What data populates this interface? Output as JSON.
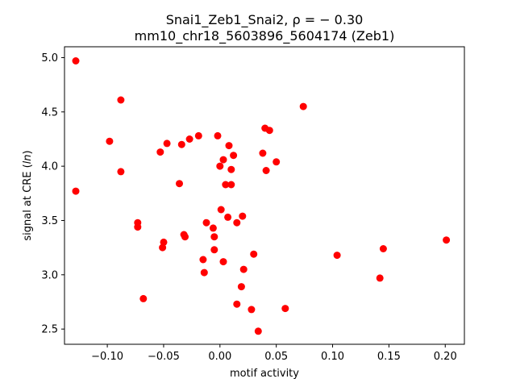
{
  "chart_data": {
    "type": "scatter",
    "title_line1": "Snai1_Zeb1_Snai2, ρ = − 0.30",
    "title_line2": "mm10_chr18_5603896_5604174 (Zeb1)",
    "xlabel": "motif activity",
    "ylabel_prefix": "signal at CRE (",
    "ylabel_italic": "ln",
    "ylabel_suffix": ")",
    "xlim": [
      -0.138,
      0.217
    ],
    "ylim": [
      2.36,
      5.1
    ],
    "xticks": [
      -0.1,
      -0.05,
      0.0,
      0.05,
      0.1,
      0.15,
      0.2
    ],
    "xtick_labels": [
      "−0.10",
      "−0.05",
      "0.00",
      "0.05",
      "0.10",
      "0.15",
      "0.20"
    ],
    "yticks": [
      2.5,
      3.0,
      3.5,
      4.0,
      4.5,
      5.0
    ],
    "ytick_labels": [
      "2.5",
      "3.0",
      "3.5",
      "4.0",
      "4.5",
      "5.0"
    ],
    "grid": false,
    "marker_color": "#ff0000",
    "points": [
      {
        "x": -0.128,
        "y": 4.97
      },
      {
        "x": -0.128,
        "y": 3.77
      },
      {
        "x": -0.098,
        "y": 4.23
      },
      {
        "x": -0.088,
        "y": 4.61
      },
      {
        "x": -0.088,
        "y": 3.95
      },
      {
        "x": -0.073,
        "y": 3.48
      },
      {
        "x": -0.073,
        "y": 3.44
      },
      {
        "x": -0.068,
        "y": 2.78
      },
      {
        "x": -0.053,
        "y": 4.13
      },
      {
        "x": -0.051,
        "y": 3.25
      },
      {
        "x": -0.05,
        "y": 3.3
      },
      {
        "x": -0.047,
        "y": 4.21
      },
      {
        "x": -0.036,
        "y": 3.84
      },
      {
        "x": -0.034,
        "y": 4.2
      },
      {
        "x": -0.032,
        "y": 3.37
      },
      {
        "x": -0.031,
        "y": 3.35
      },
      {
        "x": -0.027,
        "y": 4.25
      },
      {
        "x": -0.019,
        "y": 4.28
      },
      {
        "x": -0.015,
        "y": 3.14
      },
      {
        "x": -0.014,
        "y": 3.02
      },
      {
        "x": -0.012,
        "y": 3.48
      },
      {
        "x": -0.006,
        "y": 3.43
      },
      {
        "x": -0.005,
        "y": 3.35
      },
      {
        "x": -0.005,
        "y": 3.23
      },
      {
        "x": -0.002,
        "y": 4.28
      },
      {
        "x": 0.0,
        "y": 4.0
      },
      {
        "x": 0.001,
        "y": 3.6
      },
      {
        "x": 0.003,
        "y": 4.06
      },
      {
        "x": 0.003,
        "y": 3.12
      },
      {
        "x": 0.005,
        "y": 3.83
      },
      {
        "x": 0.007,
        "y": 3.53
      },
      {
        "x": 0.008,
        "y": 4.19
      },
      {
        "x": 0.01,
        "y": 3.97
      },
      {
        "x": 0.01,
        "y": 3.83
      },
      {
        "x": 0.012,
        "y": 4.1
      },
      {
        "x": 0.015,
        "y": 3.48
      },
      {
        "x": 0.015,
        "y": 2.73
      },
      {
        "x": 0.019,
        "y": 2.89
      },
      {
        "x": 0.02,
        "y": 3.54
      },
      {
        "x": 0.021,
        "y": 3.05
      },
      {
        "x": 0.028,
        "y": 2.68
      },
      {
        "x": 0.03,
        "y": 3.19
      },
      {
        "x": 0.034,
        "y": 2.48
      },
      {
        "x": 0.038,
        "y": 4.12
      },
      {
        "x": 0.04,
        "y": 4.35
      },
      {
        "x": 0.041,
        "y": 3.96
      },
      {
        "x": 0.044,
        "y": 4.33
      },
      {
        "x": 0.05,
        "y": 4.04
      },
      {
        "x": 0.058,
        "y": 2.69
      },
      {
        "x": 0.074,
        "y": 4.55
      },
      {
        "x": 0.104,
        "y": 3.18
      },
      {
        "x": 0.142,
        "y": 2.97
      },
      {
        "x": 0.145,
        "y": 3.24
      },
      {
        "x": 0.201,
        "y": 3.32
      }
    ]
  }
}
